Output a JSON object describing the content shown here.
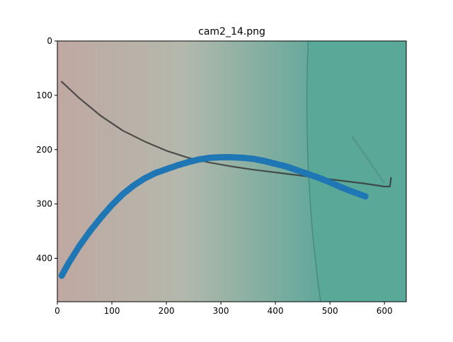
{
  "chart_data": {
    "type": "scatter",
    "title": "cam2_14.png",
    "xlabel": "",
    "ylabel": "",
    "xlim": [
      0,
      640
    ],
    "ylim": [
      480,
      0
    ],
    "y_inverted": true,
    "grid": false,
    "legend": "none",
    "x_ticks": [
      "0",
      "100",
      "200",
      "300",
      "400",
      "500",
      "600"
    ],
    "x_tick_values": [
      0,
      100,
      200,
      300,
      400,
      500,
      600
    ],
    "y_ticks": [
      "0",
      "100",
      "200",
      "300",
      "400"
    ],
    "y_tick_values": [
      0,
      100,
      200,
      300,
      400
    ],
    "background_image": {
      "description": "camera photo",
      "colors": {
        "left": "#bfa8a2",
        "middle": "#b4b8ac",
        "right": "#5fa89a",
        "panel": "#58a898",
        "wire": "#3a3a3a"
      }
    },
    "wire_curve": {
      "x": [
        8,
        40,
        80,
        120,
        160,
        200,
        240,
        280,
        320,
        360,
        400,
        440,
        480,
        520,
        560,
        600,
        610,
        612
      ],
      "y": [
        75,
        105,
        138,
        165,
        185,
        202,
        215,
        224,
        231,
        237,
        242,
        247,
        252,
        257,
        262,
        268,
        268,
        252
      ]
    },
    "series": [
      {
        "color": "#1f77b4",
        "x": [
          8,
          20,
          40,
          60,
          80,
          100,
          120,
          140,
          160,
          180,
          200,
          220,
          240,
          260,
          280,
          300,
          320,
          340,
          360,
          380,
          400,
          420,
          440,
          460,
          480,
          500,
          520,
          540,
          565
        ],
        "y": [
          432,
          410,
          378,
          350,
          325,
          302,
          282,
          266,
          253,
          243,
          236,
          229,
          223,
          218,
          215,
          214,
          214,
          215,
          217,
          221,
          226,
          231,
          238,
          245,
          252,
          260,
          269,
          277,
          286
        ]
      }
    ]
  }
}
